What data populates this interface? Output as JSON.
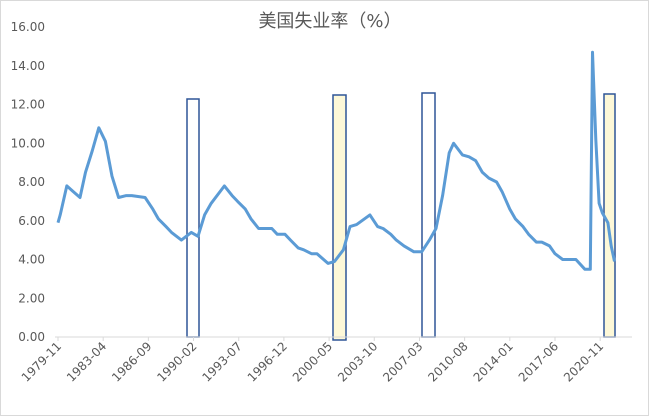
{
  "chart_data": {
    "type": "line",
    "title": "美国失业率（%）",
    "x": [
      "1979-11",
      "1980-01",
      "1980-07",
      "1981-01",
      "1981-07",
      "1981-12",
      "1982-06",
      "1982-12",
      "1983-06",
      "1983-12",
      "1984-06",
      "1985-01",
      "1985-06",
      "1986-06",
      "1987-01",
      "1987-06",
      "1988-01",
      "1988-06",
      "1989-03",
      "1989-12",
      "1990-06",
      "1990-12",
      "1991-06",
      "1992-06",
      "1993-01",
      "1993-06",
      "1994-01",
      "1994-06",
      "1995-01",
      "1996-01",
      "1996-06",
      "1997-01",
      "1997-06",
      "1998-01",
      "1998-06",
      "1999-01",
      "1999-06",
      "2000-04",
      "2000-10",
      "2001-06",
      "2001-12",
      "2002-06",
      "2003-06",
      "2004-01",
      "2004-06",
      "2005-01",
      "2005-06",
      "2006-01",
      "2006-10",
      "2007-05",
      "2007-12",
      "2008-06",
      "2008-12",
      "2009-06",
      "2009-10",
      "2010-06",
      "2010-12",
      "2011-06",
      "2011-12",
      "2012-06",
      "2013-01",
      "2013-06",
      "2014-01",
      "2014-06",
      "2015-01",
      "2015-06",
      "2016-01",
      "2016-06",
      "2017-01",
      "2017-06",
      "2018-01",
      "2018-06",
      "2019-01",
      "2019-09",
      "2020-02",
      "2020-04",
      "2020-05",
      "2020-07",
      "2020-10",
      "2021-01",
      "2021-06",
      "2021-09",
      "2021-12"
    ],
    "series": [
      {
        "name": "美国失业率",
        "color": "#5b9bd5",
        "values": [
          5.9,
          6.3,
          7.8,
          7.5,
          7.2,
          8.5,
          9.6,
          10.8,
          10.1,
          8.3,
          7.2,
          7.3,
          7.3,
          7.2,
          6.6,
          6.1,
          5.7,
          5.4,
          5.0,
          5.4,
          5.2,
          6.3,
          6.9,
          7.8,
          7.3,
          7.0,
          6.6,
          6.1,
          5.6,
          5.6,
          5.3,
          5.3,
          5.0,
          4.6,
          4.5,
          4.3,
          4.3,
          3.8,
          3.9,
          4.5,
          5.7,
          5.8,
          6.3,
          5.7,
          5.6,
          5.3,
          5.0,
          4.7,
          4.4,
          4.4,
          5.0,
          5.6,
          7.3,
          9.5,
          10.0,
          9.4,
          9.3,
          9.1,
          8.5,
          8.2,
          8.0,
          7.5,
          6.6,
          6.1,
          5.7,
          5.3,
          4.9,
          4.9,
          4.7,
          4.3,
          4.0,
          4.0,
          4.0,
          3.5,
          3.5,
          14.7,
          13.2,
          10.2,
          6.9,
          6.4,
          5.9,
          4.7,
          3.9
        ]
      }
    ],
    "ylim": [
      0,
      16
    ],
    "yticks": [
      {
        "value": 0,
        "label": "0.00"
      },
      {
        "value": 2,
        "label": "2.00"
      },
      {
        "value": 4,
        "label": "4.00"
      },
      {
        "value": 6,
        "label": "6.00"
      },
      {
        "value": 8,
        "label": "8.00"
      },
      {
        "value": 10,
        "label": "10.00"
      },
      {
        "value": 12,
        "label": "12.00"
      },
      {
        "value": 14,
        "label": "14.00"
      },
      {
        "value": 16,
        "label": "16.00"
      }
    ],
    "xticks": [
      "1979-11",
      "1983-04",
      "1986-09",
      "1990-02",
      "1993-07",
      "1996-12",
      "2000-05",
      "2003-10",
      "2007-03",
      "2010-08",
      "2014-01",
      "2017-06",
      "2020-11"
    ],
    "grid": false
  }
}
